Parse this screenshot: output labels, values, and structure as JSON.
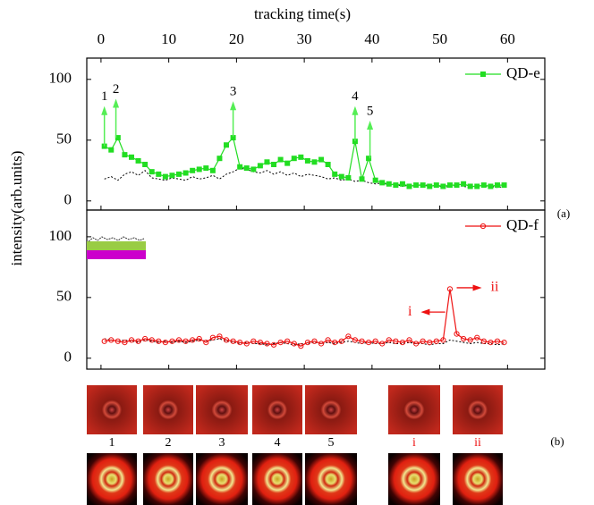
{
  "chart_data": {
    "type": "line",
    "x_label": "tracking time(s)",
    "y_label": "intensity(arb.units)",
    "panel_label": "(a)",
    "xlim": [
      -2.1,
      65.5
    ],
    "xticks": [
      0,
      10,
      20,
      30,
      40,
      50,
      60
    ],
    "x": [
      0.5,
      1.5,
      2.5,
      3.5,
      4.5,
      5.5,
      6.5,
      7.5,
      8.5,
      9.5,
      10.5,
      11.5,
      12.5,
      13.5,
      14.5,
      15.5,
      16.5,
      17.5,
      18.5,
      19.5,
      20.5,
      21.5,
      22.5,
      23.5,
      24.5,
      25.5,
      26.5,
      27.5,
      28.5,
      29.5,
      30.5,
      31.5,
      32.5,
      33.5,
      34.5,
      35.5,
      36.5,
      37.5,
      38.5,
      39.5,
      40.5,
      41.5,
      42.5,
      43.5,
      44.5,
      45.5,
      46.5,
      47.5,
      48.5,
      49.5,
      50.5,
      51.5,
      52.5,
      53.5,
      54.5,
      55.5,
      56.5,
      57.5,
      58.5,
      59.5
    ],
    "panels": [
      {
        "ylim": [
          -7.5,
          117.5
        ],
        "yticks": [
          0,
          50,
          100
        ],
        "series": [
          {
            "color": "#000000",
            "dashed": true,
            "values": [
              18,
              20,
              17,
              22,
              24,
              21,
              25,
              19,
              18,
              17,
              19,
              18,
              17,
              20,
              18,
              19,
              21,
              18,
              22,
              24,
              27,
              26,
              24,
              23,
              25,
              22,
              24,
              21,
              23,
              20,
              22,
              21,
              20,
              18,
              19,
              17,
              18,
              16,
              17,
              15,
              14,
              15,
              13,
              14,
              12,
              13,
              12,
              14,
              12,
              13,
              11,
              12,
              13,
              12,
              11,
              13,
              12,
              12,
              11,
              12
            ]
          },
          {
            "name": "QD-e",
            "color": "#22dd22",
            "marker": "square",
            "values": [
              45,
              42,
              52,
              38,
              36,
              33,
              30,
              24,
              22,
              20,
              21,
              22,
              23,
              25,
              26,
              27,
              25,
              35,
              46,
              52,
              28,
              27,
              26,
              29,
              32,
              30,
              34,
              31,
              35,
              36,
              33,
              32,
              34,
              30,
              22,
              20,
              19,
              49,
              18,
              35,
              17,
              15,
              14,
              13,
              14,
              12,
              13,
              13,
              12,
              13,
              12,
              13,
              13,
              14,
              12,
              12,
              13,
              12,
              13,
              13
            ]
          }
        ],
        "annotations": [
          {
            "text": "1",
            "x": 0.5,
            "y0": 45,
            "y1": 78
          },
          {
            "text": "2",
            "x": 2.2,
            "y0": 52,
            "y1": 84
          },
          {
            "text": "3",
            "x": 19.5,
            "y0": 53,
            "y1": 82
          },
          {
            "text": "4",
            "x": 37.5,
            "y0": 49,
            "y1": 78
          },
          {
            "text": "5",
            "x": 39.7,
            "y0": 35,
            "y1": 66
          }
        ]
      },
      {
        "ylim": [
          -9,
          122
        ],
        "yticks": [
          0,
          50,
          100
        ],
        "series": [
          {
            "color": "#000000",
            "dashed": true,
            "values": [
              16,
              15,
              14,
              15,
              14,
              13,
              15,
              14,
              13,
              14,
              13,
              14,
              13,
              14,
              15,
              14,
              15,
              16,
              14,
              13,
              12,
              13,
              12,
              12,
              11,
              12,
              13,
              12,
              11,
              12,
              12,
              13,
              12,
              13,
              12,
              13,
              14,
              13,
              12,
              13,
              12,
              12,
              13,
              12,
              12,
              13,
              12,
              12,
              11,
              12,
              12,
              15,
              14,
              13,
              12,
              13,
              12,
              12,
              11,
              12
            ]
          },
          {
            "name": "QD-f",
            "color": "#ee1111",
            "marker": "circle",
            "values": [
              14,
              15,
              14,
              13,
              15,
              14,
              16,
              15,
              14,
              13,
              14,
              15,
              14,
              15,
              16,
              13,
              17,
              18,
              15,
              14,
              13,
              12,
              14,
              13,
              12,
              11,
              13,
              14,
              12,
              10,
              13,
              14,
              12,
              15,
              13,
              14,
              18,
              15,
              14,
              13,
              14,
              12,
              15,
              14,
              13,
              15,
              12,
              14,
              13,
              14,
              15,
              57,
              20,
              16,
              15,
              17,
              14,
              13,
              14,
              13
            ]
          }
        ],
        "annotations": [
          {
            "text": "i",
            "y": 38,
            "x0": 50.8,
            "x1": 47.2,
            "color": "#ee1111"
          },
          {
            "text": "ii",
            "y": 58,
            "x0": 52.5,
            "x1": 56.2,
            "color": "#ee1111"
          }
        ]
      }
    ]
  },
  "images": {
    "label": "(b)",
    "labels": [
      "1",
      "2",
      "3",
      "4",
      "5",
      "i",
      "ii"
    ]
  }
}
